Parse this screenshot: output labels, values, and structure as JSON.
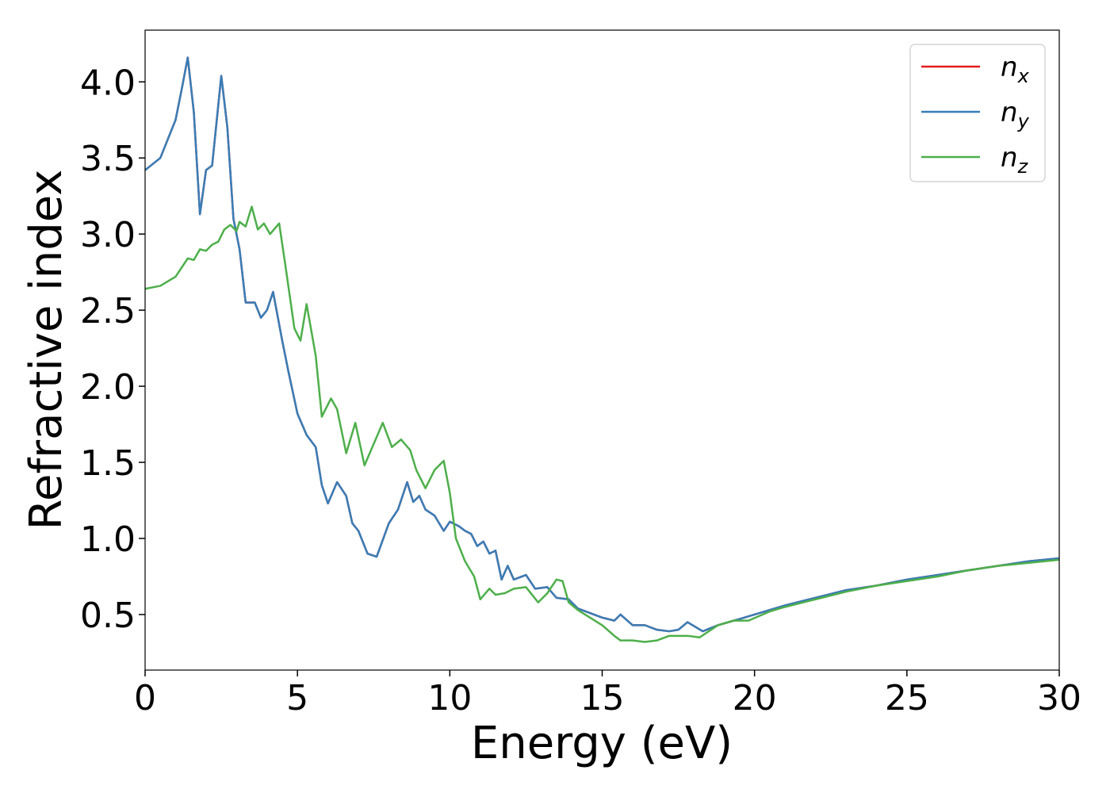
{
  "chart_data": {
    "type": "line",
    "xlabel": "Energy (eV)",
    "ylabel": "Refractive index",
    "xlim": [
      0,
      30
    ],
    "ylim": [
      0.135,
      4.34
    ],
    "xticks": [
      0,
      5,
      10,
      15,
      20,
      25,
      30
    ],
    "yticks": [
      0.5,
      {
        "value": 1,
        "label": "1.0"
      },
      1.5,
      {
        "value": 2,
        "label": "2.0"
      },
      2.5,
      {
        "value": 3,
        "label": "3.0"
      },
      3.5,
      {
        "value": 4,
        "label": "4.0"
      }
    ],
    "legend": "upper right",
    "grid": false,
    "series": [
      {
        "name": "n_x",
        "color": "#e41a1c",
        "x": [
          0,
          0.5,
          1.0,
          1.2,
          1.4,
          1.6,
          1.8,
          2.0,
          2.2,
          2.5,
          2.7,
          2.9,
          3.1,
          3.3,
          3.6,
          3.8,
          4.0,
          4.2,
          4.5,
          4.7,
          5.0,
          5.3,
          5.6,
          5.8,
          6.0,
          6.3,
          6.6,
          6.8,
          7.0,
          7.3,
          7.6,
          8.0,
          8.3,
          8.6,
          8.8,
          9.0,
          9.2,
          9.5,
          9.8,
          10.0,
          10.3,
          10.5,
          10.7,
          10.9,
          11.1,
          11.3,
          11.5,
          11.7,
          11.9,
          12.1,
          12.5,
          12.8,
          13.2,
          13.5,
          13.9,
          14.2,
          14.6,
          15.0,
          15.4,
          15.6,
          16.0,
          16.4,
          16.8,
          17.2,
          17.5,
          17.8,
          18.3,
          18.8,
          19.5,
          20,
          21,
          22,
          23,
          24,
          25,
          26,
          27,
          28,
          29,
          30
        ],
        "values": [
          3.42,
          3.5,
          3.75,
          3.95,
          4.16,
          3.8,
          3.13,
          3.42,
          3.45,
          4.04,
          3.7,
          3.1,
          2.9,
          2.55,
          2.55,
          2.45,
          2.5,
          2.62,
          2.3,
          2.1,
          1.82,
          1.68,
          1.6,
          1.35,
          1.23,
          1.37,
          1.28,
          1.1,
          1.05,
          0.9,
          0.88,
          1.1,
          1.19,
          1.37,
          1.24,
          1.28,
          1.19,
          1.15,
          1.05,
          1.11,
          1.08,
          1.05,
          1.03,
          0.95,
          0.98,
          0.9,
          0.92,
          0.73,
          0.82,
          0.73,
          0.76,
          0.67,
          0.68,
          0.61,
          0.6,
          0.54,
          0.51,
          0.48,
          0.46,
          0.5,
          0.43,
          0.43,
          0.4,
          0.39,
          0.4,
          0.45,
          0.39,
          0.43,
          0.47,
          0.5,
          0.56,
          0.61,
          0.66,
          0.69,
          0.73,
          0.76,
          0.79,
          0.82,
          0.85,
          0.87
        ]
      },
      {
        "name": "n_y",
        "color": "#377eb8",
        "x": [
          0,
          0.5,
          1.0,
          1.2,
          1.4,
          1.6,
          1.8,
          2.0,
          2.2,
          2.5,
          2.7,
          2.9,
          3.1,
          3.3,
          3.6,
          3.8,
          4.0,
          4.2,
          4.5,
          4.7,
          5.0,
          5.3,
          5.6,
          5.8,
          6.0,
          6.3,
          6.6,
          6.8,
          7.0,
          7.3,
          7.6,
          8.0,
          8.3,
          8.6,
          8.8,
          9.0,
          9.2,
          9.5,
          9.8,
          10.0,
          10.3,
          10.5,
          10.7,
          10.9,
          11.1,
          11.3,
          11.5,
          11.7,
          11.9,
          12.1,
          12.5,
          12.8,
          13.2,
          13.5,
          13.9,
          14.2,
          14.6,
          15.0,
          15.4,
          15.6,
          16.0,
          16.4,
          16.8,
          17.2,
          17.5,
          17.8,
          18.3,
          18.8,
          19.5,
          20,
          21,
          22,
          23,
          24,
          25,
          26,
          27,
          28,
          29,
          30
        ],
        "values": [
          3.42,
          3.5,
          3.75,
          3.95,
          4.16,
          3.8,
          3.13,
          3.42,
          3.45,
          4.04,
          3.7,
          3.1,
          2.9,
          2.55,
          2.55,
          2.45,
          2.5,
          2.62,
          2.3,
          2.1,
          1.82,
          1.68,
          1.6,
          1.35,
          1.23,
          1.37,
          1.28,
          1.1,
          1.05,
          0.9,
          0.88,
          1.1,
          1.19,
          1.37,
          1.24,
          1.28,
          1.19,
          1.15,
          1.05,
          1.11,
          1.08,
          1.05,
          1.03,
          0.95,
          0.98,
          0.9,
          0.92,
          0.73,
          0.82,
          0.73,
          0.76,
          0.67,
          0.68,
          0.61,
          0.6,
          0.54,
          0.51,
          0.48,
          0.46,
          0.5,
          0.43,
          0.43,
          0.4,
          0.39,
          0.4,
          0.45,
          0.39,
          0.43,
          0.47,
          0.5,
          0.56,
          0.61,
          0.66,
          0.69,
          0.73,
          0.76,
          0.79,
          0.82,
          0.85,
          0.87
        ]
      },
      {
        "name": "n_z",
        "color": "#4daf4a",
        "x": [
          0,
          0.5,
          1.0,
          1.4,
          1.6,
          1.8,
          2.0,
          2.2,
          2.4,
          2.6,
          2.8,
          3.0,
          3.1,
          3.3,
          3.5,
          3.7,
          3.9,
          4.1,
          4.4,
          4.6,
          4.9,
          5.1,
          5.3,
          5.6,
          5.8,
          6.1,
          6.3,
          6.6,
          6.9,
          7.2,
          7.5,
          7.8,
          8.1,
          8.4,
          8.7,
          8.9,
          9.2,
          9.5,
          9.8,
          10.0,
          10.2,
          10.5,
          10.8,
          11.0,
          11.3,
          11.5,
          11.8,
          12.1,
          12.5,
          12.9,
          13.2,
          13.5,
          13.7,
          13.9,
          14.2,
          14.6,
          15.0,
          15.4,
          15.6,
          16.0,
          16.4,
          16.8,
          17.2,
          17.8,
          18.2,
          18.8,
          19.3,
          19.8,
          20.5,
          21,
          22,
          23,
          24,
          25,
          26,
          27,
          28,
          29,
          30
        ],
        "values": [
          2.64,
          2.66,
          2.72,
          2.84,
          2.83,
          2.9,
          2.89,
          2.93,
          2.95,
          3.03,
          3.06,
          3.02,
          3.08,
          3.05,
          3.18,
          3.03,
          3.07,
          3.0,
          3.07,
          2.8,
          2.38,
          2.3,
          2.54,
          2.2,
          1.8,
          1.92,
          1.85,
          1.56,
          1.76,
          1.48,
          1.62,
          1.76,
          1.6,
          1.65,
          1.58,
          1.45,
          1.33,
          1.45,
          1.51,
          1.3,
          1.0,
          0.85,
          0.75,
          0.6,
          0.67,
          0.63,
          0.64,
          0.67,
          0.68,
          0.58,
          0.64,
          0.73,
          0.72,
          0.58,
          0.53,
          0.48,
          0.43,
          0.36,
          0.33,
          0.33,
          0.32,
          0.33,
          0.36,
          0.36,
          0.35,
          0.43,
          0.46,
          0.46,
          0.52,
          0.55,
          0.6,
          0.65,
          0.69,
          0.72,
          0.75,
          0.79,
          0.82,
          0.84,
          0.86
        ]
      }
    ]
  }
}
